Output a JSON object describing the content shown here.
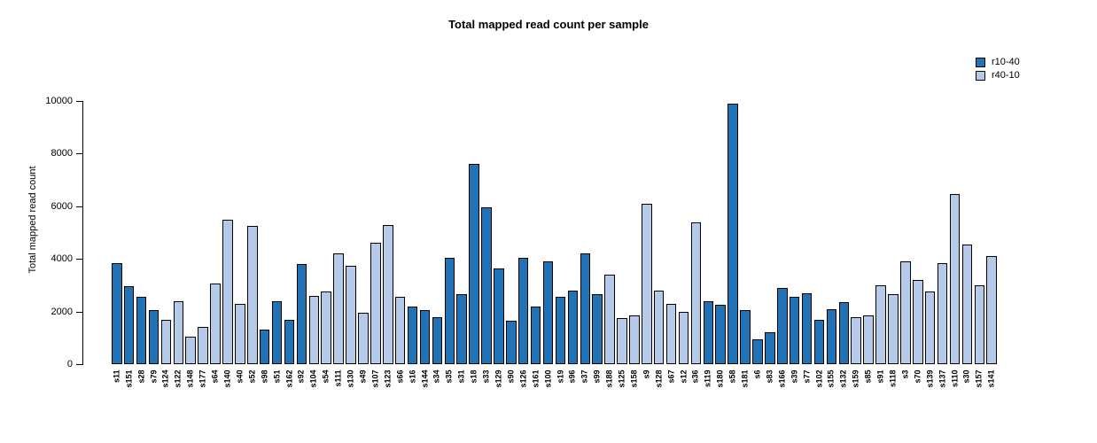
{
  "title": "Total mapped read count per sample",
  "chart_data": {
    "type": "bar",
    "title": "Total mapped read count per sample",
    "xlabel": "",
    "ylabel": "Total mapped read count",
    "ylim": [
      0,
      10000
    ],
    "yticks": [
      0,
      2000,
      4000,
      6000,
      8000,
      10000
    ],
    "grid": false,
    "legend": {
      "position": "top-right",
      "entries": [
        {
          "name": "r10-40",
          "color": "#2273B5"
        },
        {
          "name": "r40-10",
          "color": "#B4CAE8"
        }
      ]
    },
    "categories": [
      "s11",
      "s151",
      "s28",
      "s79",
      "s124",
      "s122",
      "s148",
      "s177",
      "s64",
      "s140",
      "s40",
      "s52",
      "s98",
      "s51",
      "s162",
      "s92",
      "s104",
      "s54",
      "s111",
      "s130",
      "s49",
      "s107",
      "s123",
      "s66",
      "s16",
      "s144",
      "s34",
      "s35",
      "s31",
      "s18",
      "s33",
      "s129",
      "s90",
      "s126",
      "s161",
      "s100",
      "s19",
      "s96",
      "s37",
      "s99",
      "s188",
      "s125",
      "s158",
      "s9",
      "s128",
      "s67",
      "s12",
      "s36",
      "s119",
      "s180",
      "s58",
      "s181",
      "s6",
      "s83",
      "s166",
      "s39",
      "s77",
      "s102",
      "s155",
      "s132",
      "s159",
      "s85",
      "s91",
      "s118",
      "s3",
      "s70",
      "s139",
      "s137",
      "s110",
      "s30",
      "s157",
      "s141"
    ],
    "values": [
      3850,
      2950,
      2550,
      2050,
      1700,
      2400,
      1050,
      1400,
      3050,
      5500,
      2300,
      5250,
      1300,
      2400,
      1700,
      3800,
      2600,
      2750,
      4200,
      3750,
      1950,
      4600,
      5300,
      2550,
      2200,
      2050,
      1800,
      4050,
      2650,
      7600,
      5950,
      3650,
      1650,
      4050,
      2200,
      3900,
      2550,
      2800,
      4200,
      2650,
      3400,
      1750,
      1850,
      6100,
      2800,
      2300,
      2000,
      5400,
      2400,
      2250,
      9900,
      2050,
      950,
      1200,
      2900,
      2550,
      2700,
      1700,
      2100,
      2350,
      1800,
      1850,
      3000,
      2650,
      3900,
      3200,
      2750,
      3850,
      6450,
      4550,
      3000,
      4100
    ],
    "bar_groups": [
      "r10-40",
      "r10-40",
      "r10-40",
      "r10-40",
      "r40-10",
      "r40-10",
      "r40-10",
      "r40-10",
      "r40-10",
      "r40-10",
      "r40-10",
      "r40-10",
      "r10-40",
      "r10-40",
      "r10-40",
      "r10-40",
      "r40-10",
      "r40-10",
      "r40-10",
      "r40-10",
      "r40-10",
      "r40-10",
      "r40-10",
      "r40-10",
      "r10-40",
      "r10-40",
      "r10-40",
      "r10-40",
      "r10-40",
      "r10-40",
      "r10-40",
      "r10-40",
      "r10-40",
      "r10-40",
      "r10-40",
      "r10-40",
      "r10-40",
      "r10-40",
      "r10-40",
      "r10-40",
      "r40-10",
      "r40-10",
      "r40-10",
      "r40-10",
      "r40-10",
      "r40-10",
      "r40-10",
      "r40-10",
      "r10-40",
      "r10-40",
      "r10-40",
      "r10-40",
      "r10-40",
      "r10-40",
      "r10-40",
      "r10-40",
      "r10-40",
      "r10-40",
      "r10-40",
      "r10-40",
      "r40-10",
      "r40-10",
      "r40-10",
      "r40-10",
      "r40-10",
      "r40-10",
      "r40-10",
      "r40-10",
      "r40-10",
      "r40-10",
      "r40-10",
      "r40-10"
    ]
  }
}
